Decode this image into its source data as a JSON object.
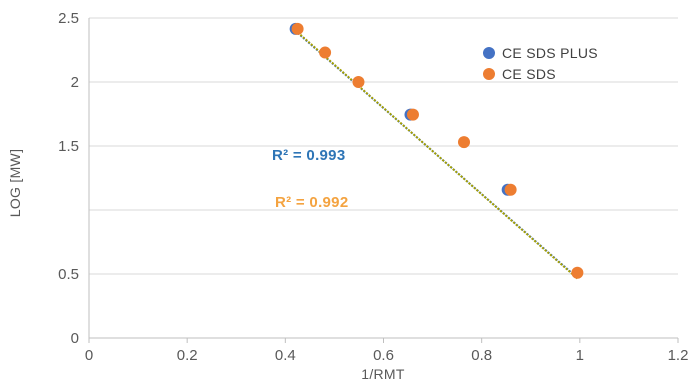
{
  "chart_data": {
    "type": "scatter",
    "xlabel": "1/RMT",
    "ylabel": "LOG [MW]",
    "xlim": [
      0,
      1.2
    ],
    "ylim": [
      0,
      2.5
    ],
    "x_ticks": [
      0,
      0.2,
      0.4,
      0.6,
      0.8,
      1,
      1.2
    ],
    "x_tick_labels": [
      "0",
      "0.2",
      "0.4",
      "0.6",
      "0.8",
      "1",
      "1.2"
    ],
    "y_ticks": [
      0,
      0.5,
      1,
      1.5,
      2,
      2.5
    ],
    "y_tick_labels": [
      "0",
      "0.5",
      "",
      "1.5",
      "2",
      "2.5"
    ],
    "grid": "horizontal",
    "legend_position": "top-right",
    "series": [
      {
        "name": "CE SDS PLUS",
        "color": "#4472C4",
        "x": [
          0.421,
          0.655,
          0.853
        ],
        "y": [
          2.415,
          1.745,
          1.158
        ],
        "trendline": {
          "x": [
            0.42,
            0.995
          ],
          "y": [
            2.4,
            0.47
          ],
          "color": "#4472C4"
        },
        "r2_label": "R² = 0.993"
      },
      {
        "name": "CE SDS",
        "color": "#ED7D31",
        "x": [
          0.425,
          0.481,
          0.549,
          0.66,
          0.764,
          0.859,
          0.995
        ],
        "y": [
          2.415,
          2.23,
          2.0,
          1.745,
          1.53,
          1.158,
          0.51
        ],
        "trendline": {
          "x": [
            0.42,
            0.995
          ],
          "y": [
            2.405,
            0.465
          ],
          "color": "#A5A000"
        },
        "r2_label": "R² = 0.992"
      }
    ]
  }
}
